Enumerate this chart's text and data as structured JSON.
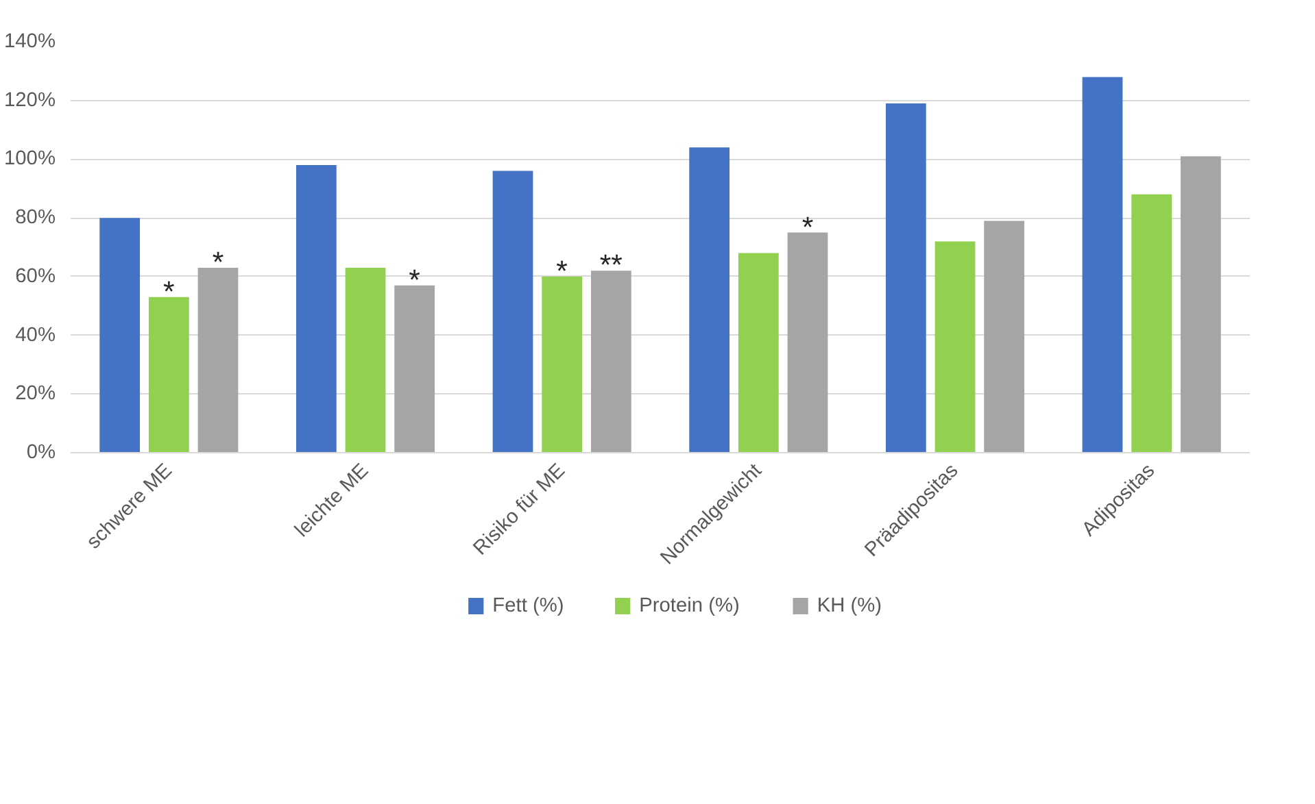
{
  "chart_data": {
    "type": "bar",
    "categories": [
      "schwere ME",
      "leichte ME",
      "Risiko für ME",
      "Normalgewicht",
      "Präadipositas",
      "Adipositas"
    ],
    "series": [
      {
        "name": "Fett (%)",
        "color": "#4472c4",
        "values": [
          80,
          98,
          96,
          104,
          119,
          128
        ]
      },
      {
        "name": "Protein (%)",
        "color": "#92d050",
        "values": [
          53,
          63,
          60,
          68,
          72,
          88
        ],
        "value_labels": [
          "*",
          null,
          "*",
          null,
          null,
          null
        ]
      },
      {
        "name": "KH (%)",
        "color": "#a5a5a5",
        "values": [
          63,
          57,
          62,
          75,
          79,
          101
        ],
        "value_labels": [
          "*",
          "*",
          "**",
          "*",
          null,
          null
        ]
      }
    ],
    "ylim": [
      0,
      140
    ],
    "yticks": [
      {
        "value": 0,
        "label": "0%"
      },
      {
        "value": 20,
        "label": "20%"
      },
      {
        "value": 40,
        "label": "40%"
      },
      {
        "value": 60,
        "label": "60%"
      },
      {
        "value": 80,
        "label": "80%"
      },
      {
        "value": 100,
        "label": "100%"
      },
      {
        "value": 120,
        "label": "120%"
      },
      {
        "value": 140,
        "label": "140%"
      }
    ],
    "grid": "y",
    "legend": "bottom"
  }
}
